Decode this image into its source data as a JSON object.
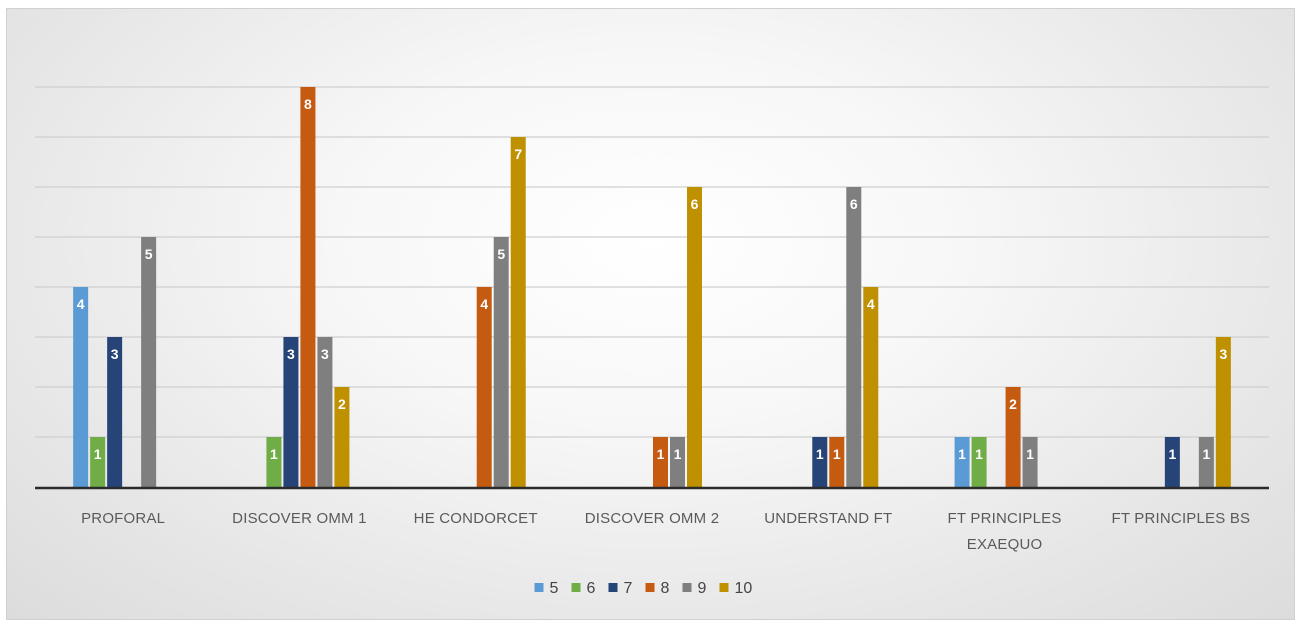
{
  "chart_data": {
    "type": "bar",
    "title": "",
    "xlabel": "",
    "ylabel": "",
    "ylim": [
      0,
      8
    ],
    "grid": true,
    "legend_position": "bottom",
    "categories": [
      [
        "PROFORAL"
      ],
      [
        "DISCOVER OMM 1"
      ],
      [
        "HE CONDORCET"
      ],
      [
        "DISCOVER OMM 2"
      ],
      [
        "UNDERSTAND FT"
      ],
      [
        "FT PRINCIPLES",
        "EXAEQUO"
      ],
      [
        "FT PRINCIPLES BS"
      ]
    ],
    "series": [
      {
        "name": "5",
        "color": "#5b9bd5",
        "values": [
          4,
          null,
          null,
          null,
          null,
          1,
          null
        ]
      },
      {
        "name": "6",
        "color": "#70ad47",
        "values": [
          1,
          1,
          null,
          null,
          null,
          1,
          null
        ]
      },
      {
        "name": "7",
        "color": "#264478",
        "values": [
          3,
          3,
          null,
          null,
          1,
          null,
          1
        ]
      },
      {
        "name": "8",
        "color": "#c55a11",
        "values": [
          null,
          8,
          4,
          1,
          1,
          2,
          null
        ]
      },
      {
        "name": "9",
        "color": "#7f7f7f",
        "values": [
          5,
          3,
          5,
          1,
          6,
          1,
          1
        ]
      },
      {
        "name": "10",
        "color": "#bf9000",
        "values": [
          null,
          2,
          7,
          6,
          4,
          null,
          3
        ]
      }
    ]
  }
}
